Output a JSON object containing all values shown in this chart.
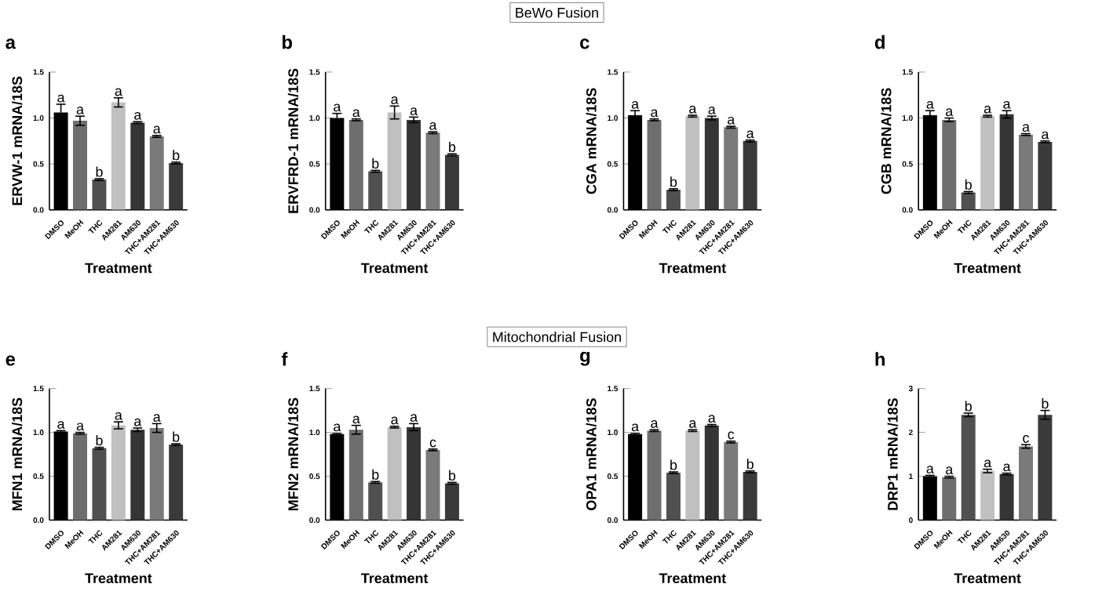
{
  "chart_data": [
    {
      "type": "bar",
      "title": "a",
      "xlabel": "Treatment",
      "ylabel": "ERVW-1 mRNA/18S",
      "annotations": [
        "BeWo Fusion"
      ],
      "categories": [
        "DMSO",
        "MeOH",
        "THC",
        "AM281",
        "AM630",
        "THC+AM281",
        "THC+AM630"
      ],
      "values": [
        1.06,
        0.97,
        0.33,
        1.17,
        0.95,
        0.8,
        0.51
      ],
      "errors": [
        0.09,
        0.05,
        0.01,
        0.05,
        0.01,
        0.01,
        0.01
      ],
      "value_labels": [
        "a",
        "a",
        "b",
        "a",
        "a",
        "a",
        "b"
      ],
      "colors": [
        "#000000",
        "#6e6e6e",
        "#505050",
        "#c0c0c0",
        "#353535",
        "#7a7a7a",
        "#3a3a3a"
      ],
      "ylim": [
        0,
        1.5
      ],
      "yticks": [
        {
          "value": 0,
          "label": "0.0"
        },
        {
          "value": 0.5,
          "label": "0.5"
        },
        {
          "value": 1,
          "label": "1.0"
        },
        {
          "value": 1.5,
          "label": "1.5"
        }
      ]
    },
    {
      "type": "bar",
      "title": "b",
      "xlabel": "Treatment",
      "ylabel": "ERVFRD-1 mRNA/18S",
      "categories": [
        "DMSO",
        "MeOH",
        "THC",
        "AM281",
        "AM630",
        "THC+AM281",
        "THC+AM630"
      ],
      "values": [
        1.0,
        0.98,
        0.42,
        1.06,
        0.98,
        0.84,
        0.6
      ],
      "errors": [
        0.05,
        0.01,
        0.01,
        0.07,
        0.03,
        0.01,
        0.01
      ],
      "value_labels": [
        "a",
        "a",
        "b",
        "a",
        "a",
        "a",
        "b"
      ],
      "colors": [
        "#000000",
        "#6e6e6e",
        "#505050",
        "#c0c0c0",
        "#353535",
        "#7a7a7a",
        "#3a3a3a"
      ],
      "ylim": [
        0,
        1.5
      ],
      "yticks": [
        {
          "value": 0,
          "label": "0.0"
        },
        {
          "value": 0.5,
          "label": "0.5"
        },
        {
          "value": 1,
          "label": "1.0"
        },
        {
          "value": 1.5,
          "label": "1.5"
        }
      ]
    },
    {
      "type": "bar",
      "title": "c",
      "xlabel": "Treatment",
      "ylabel": "CGA mRNA/18S",
      "categories": [
        "DMSO",
        "MeOH",
        "THC",
        "AM281",
        "AM630",
        "THC+AM281",
        "THC+AM630"
      ],
      "values": [
        1.03,
        0.98,
        0.22,
        1.02,
        1.0,
        0.9,
        0.75
      ],
      "errors": [
        0.05,
        0.01,
        0.01,
        0.01,
        0.02,
        0.01,
        0.01
      ],
      "value_labels": [
        "a",
        "a",
        "b",
        "a",
        "a",
        "a",
        "a"
      ],
      "colors": [
        "#000000",
        "#6e6e6e",
        "#505050",
        "#c0c0c0",
        "#353535",
        "#7a7a7a",
        "#3a3a3a"
      ],
      "ylim": [
        0,
        1.5
      ],
      "yticks": [
        {
          "value": 0,
          "label": "0.0"
        },
        {
          "value": 0.5,
          "label": "0.5"
        },
        {
          "value": 1,
          "label": "1.0"
        },
        {
          "value": 1.5,
          "label": "1.5"
        }
      ]
    },
    {
      "type": "bar",
      "title": "d",
      "xlabel": "Treatment",
      "ylabel": "CGB mRNA/18S",
      "categories": [
        "DMSO",
        "MeOH",
        "THC",
        "AM281",
        "AM630",
        "THC+AM281",
        "THC+AM630"
      ],
      "values": [
        1.03,
        0.98,
        0.19,
        1.02,
        1.04,
        0.82,
        0.74
      ],
      "errors": [
        0.05,
        0.02,
        0.01,
        0.01,
        0.04,
        0.01,
        0.01
      ],
      "value_labels": [
        "a",
        "a",
        "b",
        "a",
        "a",
        "a",
        "a"
      ],
      "colors": [
        "#000000",
        "#6e6e6e",
        "#505050",
        "#c0c0c0",
        "#353535",
        "#7a7a7a",
        "#3a3a3a"
      ],
      "ylim": [
        0,
        1.5
      ],
      "yticks": [
        {
          "value": 0,
          "label": "0.0"
        },
        {
          "value": 0.5,
          "label": "0.5"
        },
        {
          "value": 1,
          "label": "1.0"
        },
        {
          "value": 1.5,
          "label": "1.5"
        }
      ]
    },
    {
      "type": "bar",
      "title": "e",
      "xlabel": "Treatment",
      "ylabel": "MFN1 mRNA/18S",
      "annotations": [
        "Mitochondrial Fusion"
      ],
      "categories": [
        "DMSO",
        "MeOH",
        "THC",
        "AM281",
        "AM630",
        "THC+AM281",
        "THC+AM630"
      ],
      "values": [
        1.01,
        0.99,
        0.82,
        1.08,
        1.03,
        1.05,
        0.86
      ],
      "errors": [
        0.01,
        0.01,
        0.01,
        0.04,
        0.02,
        0.05,
        0.01
      ],
      "value_labels": [
        "a",
        "a",
        "b",
        "a",
        "a",
        "a",
        "b"
      ],
      "colors": [
        "#000000",
        "#6e6e6e",
        "#505050",
        "#c0c0c0",
        "#353535",
        "#7a7a7a",
        "#3a3a3a"
      ],
      "ylim": [
        0,
        1.5
      ],
      "yticks": [
        {
          "value": 0,
          "label": "0.0"
        },
        {
          "value": 0.5,
          "label": "0.5"
        },
        {
          "value": 1,
          "label": "1.0"
        },
        {
          "value": 1.5,
          "label": "1.5"
        }
      ]
    },
    {
      "type": "bar",
      "title": "f",
      "xlabel": "Treatment",
      "ylabel": "MFN2 mRNA/18S",
      "categories": [
        "DMSO",
        "MeOH",
        "THC",
        "AM281",
        "AM630",
        "THC+AM281",
        "THC+AM630"
      ],
      "values": [
        0.98,
        1.03,
        0.43,
        1.06,
        1.06,
        0.8,
        0.42
      ],
      "errors": [
        0.01,
        0.05,
        0.01,
        0.01,
        0.04,
        0.01,
        0.01
      ],
      "value_labels": [
        "a",
        "a",
        "b",
        "a",
        "a",
        "c",
        "b"
      ],
      "colors": [
        "#000000",
        "#6e6e6e",
        "#505050",
        "#c0c0c0",
        "#353535",
        "#7a7a7a",
        "#3a3a3a"
      ],
      "ylim": [
        0,
        1.5
      ],
      "yticks": [
        {
          "value": 0,
          "label": "0.0"
        },
        {
          "value": 0.5,
          "label": "0.5"
        },
        {
          "value": 1,
          "label": "1.0"
        },
        {
          "value": 1.5,
          "label": "1.5"
        }
      ]
    },
    {
      "type": "bar",
      "title": "g",
      "xlabel": "Treatment",
      "ylabel": "OPA1 mRNA/18S",
      "categories": [
        "DMSO",
        "MeOH",
        "THC",
        "AM281",
        "AM630",
        "THC+AM281",
        "THC+AM630"
      ],
      "values": [
        0.98,
        1.02,
        0.54,
        1.02,
        1.08,
        0.89,
        0.55
      ],
      "errors": [
        0.01,
        0.01,
        0.01,
        0.01,
        0.01,
        0.01,
        0.01
      ],
      "value_labels": [
        "a",
        "a",
        "b",
        "a",
        "a",
        "c",
        "b"
      ],
      "colors": [
        "#000000",
        "#6e6e6e",
        "#505050",
        "#c0c0c0",
        "#353535",
        "#7a7a7a",
        "#3a3a3a"
      ],
      "ylim": [
        0,
        1.5
      ],
      "yticks": [
        {
          "value": 0,
          "label": "0.0"
        },
        {
          "value": 0.5,
          "label": "0.5"
        },
        {
          "value": 1,
          "label": "1.0"
        },
        {
          "value": 1.5,
          "label": "1.5"
        }
      ]
    },
    {
      "type": "bar",
      "title": "h",
      "xlabel": "Treatment",
      "ylabel": "DRP1 mRNA/18S",
      "categories": [
        "DMSO",
        "MeOH",
        "THC",
        "AM281",
        "AM630",
        "THC+AM281",
        "THC+AM630"
      ],
      "values": [
        1.0,
        0.98,
        2.4,
        1.12,
        1.05,
        1.68,
        2.4
      ],
      "errors": [
        0.02,
        0.02,
        0.04,
        0.04,
        0.02,
        0.04,
        0.1
      ],
      "value_labels": [
        "a",
        "a",
        "b",
        "a",
        "a",
        "c",
        "b"
      ],
      "colors": [
        "#000000",
        "#6e6e6e",
        "#505050",
        "#c0c0c0",
        "#353535",
        "#7a7a7a",
        "#3a3a3a"
      ],
      "ylim": [
        0,
        3
      ],
      "yticks": [
        0,
        1,
        2,
        3
      ]
    }
  ]
}
